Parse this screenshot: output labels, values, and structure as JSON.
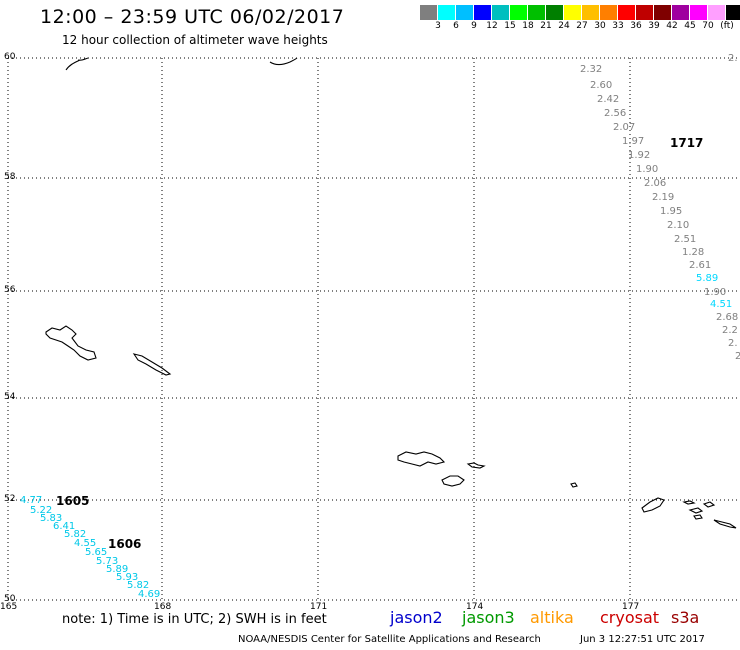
{
  "header": {
    "title": "12:00 – 23:59 UTC 06/02/2017",
    "subtitle": "12 hour collection of altimeter wave heights"
  },
  "color_scale": {
    "colors": [
      "#7f7f7f",
      "#00ffff",
      "#00bfff",
      "#0000ff",
      "#00bfbf",
      "#00ff00",
      "#00bf00",
      "#007f00",
      "#ffff00",
      "#ffbf00",
      "#ff7f00",
      "#ff0000",
      "#bf0000",
      "#7f0000",
      "#9f009f",
      "#ff00ff",
      "#ff9fff",
      "#000000"
    ],
    "labels": [
      "3",
      "6",
      "9",
      "12",
      "15",
      "18",
      "21",
      "24",
      "27",
      "30",
      "33",
      "36",
      "39",
      "42",
      "45",
      "70",
      "(ft)"
    ]
  },
  "map": {
    "lat_labels": [
      "60",
      "58",
      "56",
      "54",
      "52",
      "50"
    ],
    "lon_labels": [
      "165",
      "168",
      "171",
      "174",
      "177"
    ]
  },
  "tracks": {
    "track_1717": {
      "label": "1717",
      "color": "#e8a010",
      "values": [
        {
          "v": "2.32",
          "c": "#808080"
        },
        {
          "v": "2.60",
          "c": "#808080"
        },
        {
          "v": "2.42",
          "c": "#808080"
        },
        {
          "v": "2.56",
          "c": "#808080"
        },
        {
          "v": "2.07",
          "c": "#808080"
        },
        {
          "v": "1.97",
          "c": "#808080"
        },
        {
          "v": "1.92",
          "c": "#808080"
        },
        {
          "v": "1.90",
          "c": "#808080"
        },
        {
          "v": "2.06",
          "c": "#808080"
        },
        {
          "v": "2.19",
          "c": "#808080"
        },
        {
          "v": "1.95",
          "c": "#808080"
        },
        {
          "v": "2.10",
          "c": "#808080"
        },
        {
          "v": "2.51",
          "c": "#808080"
        },
        {
          "v": "1.28",
          "c": "#808080"
        },
        {
          "v": "2.61",
          "c": "#808080"
        },
        {
          "v": "5.89",
          "c": "#00d8ff"
        },
        {
          "v": "1.90",
          "c": "#808080"
        },
        {
          "v": "4.51",
          "c": "#00d8ff"
        },
        {
          "v": "2.68",
          "c": "#808080"
        },
        {
          "v": "2.2",
          "c": "#808080"
        },
        {
          "v": "2.",
          "c": "#808080"
        },
        {
          "v": "2",
          "c": "#808080"
        }
      ],
      "edge_value": "2."
    },
    "track_1605": {
      "label": "1605",
      "color": "#007f00",
      "values": [
        "4.77",
        "5.22",
        "5.83",
        "6.41"
      ]
    },
    "track_1606": {
      "label": "1606",
      "color": "#007f00",
      "values": [
        "5.82",
        "4.55",
        "5.65",
        "5.73",
        "5.89",
        "5.93",
        "5.82",
        "4.69"
      ]
    }
  },
  "footer": {
    "note": "note: 1) Time is in UTC; 2) SWH is in feet",
    "satellites": [
      {
        "name": "jason2",
        "color": "#0000cc"
      },
      {
        "name": "jason3",
        "color": "#009900"
      },
      {
        "name": "altika",
        "color": "#ff9900"
      },
      {
        "name": "cryosat",
        "color": "#cc0000"
      },
      {
        "name": "s3a",
        "color": "#990000"
      }
    ],
    "credit": "NOAA/NESDIS Center for Satellite Applications and Research",
    "timestamp": "Jun  3 12:27:51 UTC 2017"
  }
}
